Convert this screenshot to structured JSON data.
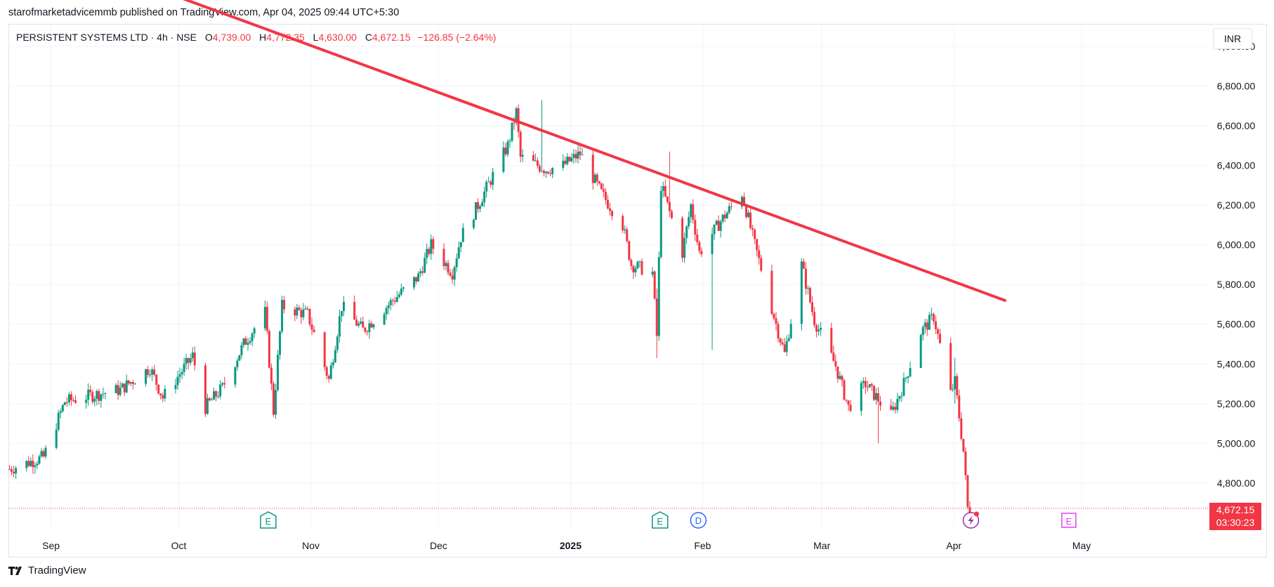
{
  "header": {
    "publisher_text": "starofmarketadvicemmb published on TradingView.com, Apr 04, 2025 09:44 UTC+5:30"
  },
  "legend": {
    "symbol": "PERSISTENT SYSTEMS LTD · 4h · NSE",
    "o_label": "O",
    "o_value": "4,739.00",
    "h_label": "H",
    "h_value": "4,772.35",
    "l_label": "L",
    "l_value": "4,630.00",
    "c_label": "C",
    "c_value": "4,672.15",
    "change": "−126.85 (−2.64%)"
  },
  "currency_button": "INR",
  "last_price": {
    "value": "4,672.15",
    "countdown": "03:30:23"
  },
  "footer": {
    "brand": "TradingView"
  },
  "colors": {
    "up": "#089981",
    "down": "#f23645",
    "trendline": "#f23645",
    "grid": "#f0f3fa",
    "text": "#131722"
  },
  "chart_data": {
    "type": "candlestick",
    "y_ticks": [
      "4,800.00",
      "5,000.00",
      "5,200.00",
      "5,400.00",
      "5,600.00",
      "5,800.00",
      "6,000.00",
      "6,200.00",
      "6,400.00",
      "6,600.00",
      "6,800.00",
      "7,000.00"
    ],
    "y_tick_values": [
      4800,
      5000,
      5200,
      5400,
      5600,
      5800,
      6000,
      6200,
      6400,
      6600,
      6800,
      7000
    ],
    "x_ticks": [
      {
        "label": "Sep",
        "date": "2024-09-01"
      },
      {
        "label": "Oct",
        "date": "2024-10-01"
      },
      {
        "label": "Nov",
        "date": "2024-11-01"
      },
      {
        "label": "Dec",
        "date": "2024-12-01"
      },
      {
        "label": "2025",
        "date": "2025-01-01",
        "bold": true
      },
      {
        "label": "Feb",
        "date": "2025-02-01"
      },
      {
        "label": "Mar",
        "date": "2025-03-01"
      },
      {
        "label": "Apr",
        "date": "2025-04-01"
      },
      {
        "label": "May",
        "date": "2025-05-01"
      }
    ],
    "x_range": [
      "2024-08-22",
      "2025-05-31"
    ],
    "y_range": [
      4580,
      7110
    ],
    "grid": true,
    "last_price_line": 4672.15,
    "trendline": {
      "start": {
        "date": "2024-09-27",
        "price": 7280
      },
      "end": {
        "date": "2025-04-13",
        "price": 5720
      }
    },
    "event_markers": [
      {
        "type": "earnings",
        "label": "E",
        "date": "2024-10-22"
      },
      {
        "type": "earnings",
        "label": "E",
        "date": "2025-01-22"
      },
      {
        "type": "dividend",
        "label": "D",
        "date": "2025-01-31"
      },
      {
        "type": "split",
        "label": "⚡",
        "date": "2025-04-05"
      },
      {
        "type": "earnings_upcoming",
        "label": "E",
        "date": "2025-04-28"
      }
    ],
    "anchors": [
      [
        "2024-08-22",
        4870
      ],
      [
        "2024-08-30",
        4930
      ],
      [
        "2024-09-04",
        5210
      ],
      [
        "2024-09-10",
        5240
      ],
      [
        "2024-09-17",
        5270
      ],
      [
        "2024-09-24",
        5380
      ],
      [
        "2024-09-27",
        5230
      ],
      [
        "2024-10-04",
        5440
      ],
      [
        "2024-10-07",
        5180
      ],
      [
        "2024-10-11",
        5280
      ],
      [
        "2024-10-16",
        5500
      ],
      [
        "2024-10-21",
        5660
      ],
      [
        "2024-10-23",
        5160
      ],
      [
        "2024-10-25",
        5690
      ],
      [
        "2024-10-31",
        5650
      ],
      [
        "2024-11-05",
        5320
      ],
      [
        "2024-11-08",
        5690
      ],
      [
        "2024-11-13",
        5570
      ],
      [
        "2024-11-20",
        5720
      ],
      [
        "2024-11-26",
        5840
      ],
      [
        "2024-11-29",
        6000
      ],
      [
        "2024-12-04",
        5860
      ],
      [
        "2024-12-06",
        6040
      ],
      [
        "2024-12-10",
        6200
      ],
      [
        "2024-12-17",
        6500
      ],
      [
        "2024-12-19",
        6670
      ],
      [
        "2024-12-20",
        6440
      ],
      [
        "2024-12-26",
        6380
      ],
      [
        "2024-12-30",
        6400
      ],
      [
        "2025-01-03",
        6460
      ],
      [
        "2025-01-08",
        6260
      ],
      [
        "2025-01-13",
        6100
      ],
      [
        "2025-01-15",
        5900
      ],
      [
        "2025-01-20",
        5860
      ],
      [
        "2025-01-21",
        5540
      ],
      [
        "2025-01-22",
        6300
      ],
      [
        "2025-01-27",
        5960
      ],
      [
        "2025-01-29",
        6200
      ],
      [
        "2025-01-31",
        5960
      ],
      [
        "2025-02-05",
        6120
      ],
      [
        "2025-02-10",
        6260
      ],
      [
        "2025-02-13",
        6000
      ],
      [
        "2025-02-18",
        5600
      ],
      [
        "2025-02-20",
        5450
      ],
      [
        "2025-02-24",
        5900
      ],
      [
        "2025-02-27",
        5620
      ],
      [
        "2025-03-04",
        5390
      ],
      [
        "2025-03-07",
        5180
      ],
      [
        "2025-03-11",
        5300
      ],
      [
        "2025-03-17",
        5140
      ],
      [
        "2025-03-20",
        5300
      ],
      [
        "2025-03-24",
        5560
      ],
      [
        "2025-03-27",
        5640
      ],
      [
        "2025-03-31",
        5250
      ],
      [
        "2025-04-01",
        5310
      ],
      [
        "2025-04-03",
        4960
      ],
      [
        "2025-04-04",
        4672
      ]
    ],
    "spikes": [
      [
        "2024-12-25",
        6730,
        6420
      ],
      [
        "2025-01-21",
        5780,
        5430
      ],
      [
        "2025-01-24",
        6470,
        6300
      ],
      [
        "2025-02-03",
        5880,
        5470
      ],
      [
        "2025-03-14",
        5130,
        5000
      ],
      [
        "2025-04-01",
        5430,
        5200
      ]
    ]
  }
}
